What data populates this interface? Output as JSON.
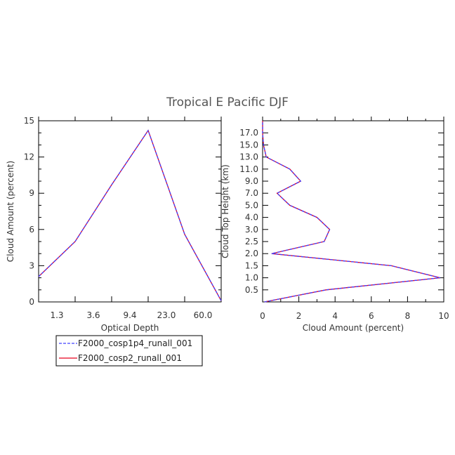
{
  "figure": {
    "title": "Tropical E Pacific DJF"
  },
  "chart_data": [
    {
      "type": "line",
      "xlabel": "Optical Depth",
      "ylabel": "Cloud Amount (percent)",
      "x_tick_labels": [
        "1.3",
        "3.6",
        "9.4",
        "23.0",
        "60.0"
      ],
      "y_ticks": [
        0,
        3,
        6,
        9,
        12,
        15
      ],
      "y_tick_labels": [
        "0",
        "3",
        "6",
        "9",
        "12",
        "15"
      ],
      "xlim": [
        0,
        5
      ],
      "ylim": [
        0,
        15
      ],
      "x": [
        0,
        1,
        2,
        3,
        4,
        5
      ],
      "series": [
        {
          "name": "F2000_cosp1p4_runall_001",
          "values": [
            2.1,
            5.0,
            9.7,
            14.2,
            5.6,
            0.1
          ]
        },
        {
          "name": "F2000_cosp2_runall_001",
          "values": [
            2.1,
            5.0,
            9.7,
            14.2,
            5.6,
            0.1
          ]
        }
      ]
    },
    {
      "type": "line",
      "xlabel": "Cloud Amount (percent)",
      "ylabel": "Cloud Top Height (km)",
      "x_ticks": [
        0,
        2,
        4,
        6,
        8,
        10
      ],
      "x_tick_labels": [
        "0",
        "2",
        "4",
        "6",
        "8",
        "10"
      ],
      "y_tick_labels": [
        "0.5",
        "1.0",
        "1.5",
        "2.0",
        "2.5",
        "3.0",
        "4.0",
        "5.0",
        "7.0",
        "9.0",
        "11.0",
        "13.0",
        "15.0",
        "17.0"
      ],
      "xlim": [
        0,
        10
      ],
      "y_levels": [
        "0",
        "0.5",
        "1.0",
        "1.5",
        "2.0",
        "2.5",
        "3.0",
        "4.0",
        "5.0",
        "7.0",
        "9.0",
        "11.0",
        "13.0",
        "15.0",
        "17.0",
        "18.0"
      ],
      "series": [
        {
          "name": "F2000_cosp1p4_runall_001",
          "values": [
            0.1,
            3.5,
            9.8,
            7.1,
            0.5,
            3.4,
            3.7,
            3.0,
            1.5,
            0.8,
            2.1,
            1.5,
            0.2,
            0.05,
            0.0,
            0.0
          ]
        },
        {
          "name": "F2000_cosp2_runall_001",
          "values": [
            0.1,
            3.5,
            9.8,
            7.1,
            0.5,
            3.4,
            3.7,
            3.0,
            1.5,
            0.8,
            2.1,
            1.5,
            0.2,
            0.05,
            0.0,
            0.0
          ]
        }
      ]
    }
  ],
  "legend": {
    "items": [
      {
        "label": "F2000_cosp1p4_runall_001",
        "color": "#4040ff",
        "style": "dashed"
      },
      {
        "label": "F2000_cosp2_runall_001",
        "color": "#e8001c",
        "style": "solid"
      }
    ]
  },
  "colors": {
    "series1": "#4040ff",
    "series2": "#e8001c",
    "axes": "#000000"
  }
}
